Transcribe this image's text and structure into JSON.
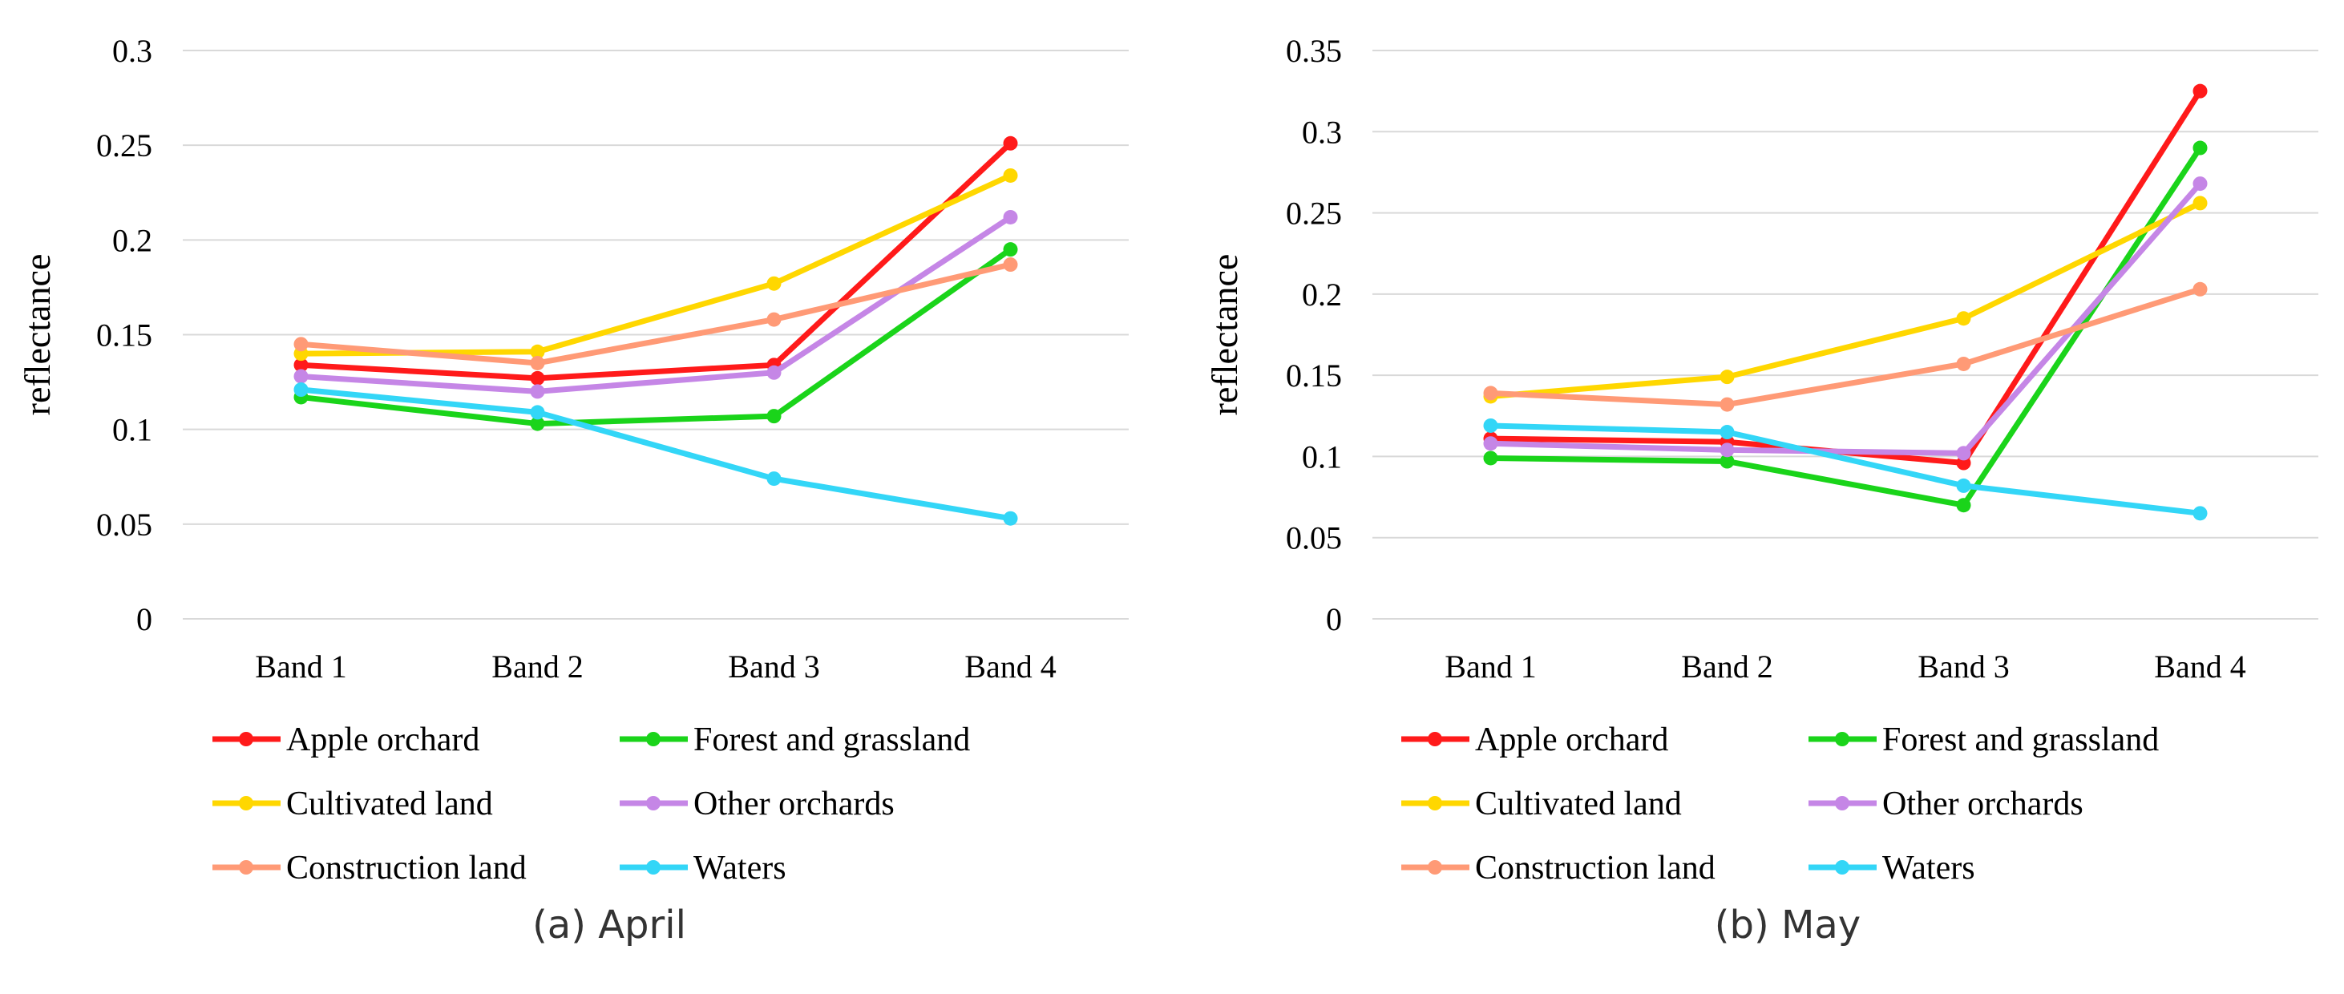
{
  "chart_data": [
    {
      "type": "line",
      "title": "",
      "caption": "(a)  April",
      "xlabel": "",
      "ylabel": "reflectance",
      "categories": [
        "Band 1",
        "Band 2",
        "Band 3",
        "Band 4"
      ],
      "ylim": [
        0,
        0.3
      ],
      "yticks": [
        0,
        0.05,
        0.1,
        0.15,
        0.2,
        0.25,
        0.3
      ],
      "ytick_labels": [
        "0",
        "0.05",
        "0.1",
        "0.15",
        "0.2",
        "0.25",
        "0.3"
      ],
      "grid": true,
      "series": [
        {
          "name": "Apple orchard",
          "color": "#ff1a1a",
          "values": [
            0.134,
            0.127,
            0.134,
            0.251
          ]
        },
        {
          "name": "Forest and grassland",
          "color": "#1ad41a",
          "values": [
            0.117,
            0.103,
            0.107,
            0.195
          ]
        },
        {
          "name": "Cultivated land",
          "color": "#ffd700",
          "values": [
            0.14,
            0.141,
            0.177,
            0.234
          ]
        },
        {
          "name": "Other orchards",
          "color": "#c586e6",
          "values": [
            0.128,
            0.12,
            0.13,
            0.212
          ]
        },
        {
          "name": "Construction land",
          "color": "#ff9a76",
          "values": [
            0.145,
            0.135,
            0.158,
            0.187
          ]
        },
        {
          "name": "Waters",
          "color": "#33d6f7",
          "values": [
            0.121,
            0.109,
            0.074,
            0.053
          ]
        }
      ]
    },
    {
      "type": "line",
      "title": "",
      "caption": "(b)  May",
      "xlabel": "",
      "ylabel": "reflectance",
      "categories": [
        "Band 1",
        "Band 2",
        "Band 3",
        "Band 4"
      ],
      "ylim": [
        0,
        0.35
      ],
      "yticks": [
        0,
        0.05,
        0.1,
        0.15,
        0.2,
        0.25,
        0.3,
        0.35
      ],
      "ytick_labels": [
        "0",
        "0.05",
        "0.1",
        "0.15",
        "0.2",
        "0.25",
        "0.3",
        "0.35"
      ],
      "grid": true,
      "series": [
        {
          "name": "Apple orchard",
          "color": "#ff1a1a",
          "values": [
            0.111,
            0.109,
            0.096,
            0.325
          ]
        },
        {
          "name": "Forest and grassland",
          "color": "#1ad41a",
          "values": [
            0.099,
            0.097,
            0.07,
            0.29
          ]
        },
        {
          "name": "Cultivated land",
          "color": "#ffd700",
          "values": [
            0.137,
            0.149,
            0.185,
            0.256
          ]
        },
        {
          "name": "Other orchards",
          "color": "#c586e6",
          "values": [
            0.108,
            0.104,
            0.102,
            0.268
          ]
        },
        {
          "name": "Construction land",
          "color": "#ff9a76",
          "values": [
            0.139,
            0.132,
            0.157,
            0.203
          ]
        },
        {
          "name": "Waters",
          "color": "#33d6f7",
          "values": [
            0.119,
            0.115,
            0.082,
            0.065
          ]
        }
      ]
    }
  ]
}
